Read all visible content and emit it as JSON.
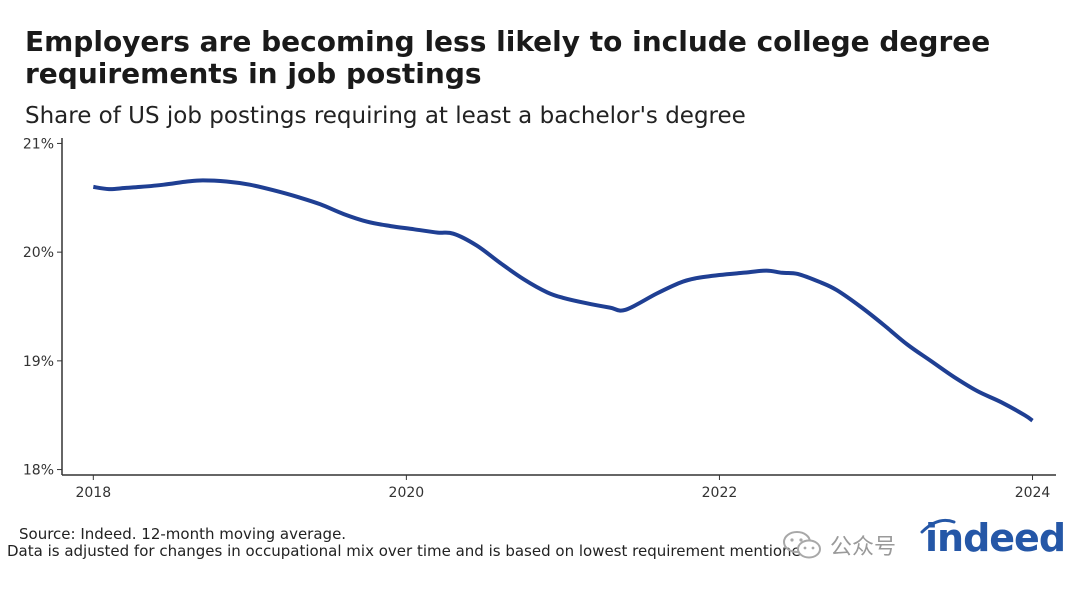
{
  "title": "Employers are becoming less likely to include college degree requirements in job postings",
  "subtitle": "Share of US job postings requiring at least a bachelor's degree",
  "source": "Source: Indeed. 12-month moving average.",
  "note": "Data is adjusted for changes in occupational mix over time and is based on lowest requirement mentioned",
  "logo_text": "indeed",
  "watermark": {
    "text": "公众号",
    "icon": "wechat-icon"
  },
  "colors": {
    "line": "#1f3f93",
    "axis": "#333333",
    "logo": "#2557a7"
  },
  "chart_data": {
    "type": "line",
    "title": "",
    "xlabel": "",
    "ylabel": "",
    "xlim": [
      2017.8,
      2024.15
    ],
    "ylim": [
      17.95,
      21.05
    ],
    "xticks": [
      2018,
      2020,
      2022,
      2024
    ],
    "xtick_labels": [
      "2018",
      "2020",
      "2022",
      "2024"
    ],
    "yticks": [
      18,
      19,
      20,
      21
    ],
    "ytick_labels": [
      "18%",
      "19%",
      "20%",
      "21%"
    ],
    "grid": false,
    "legend": false,
    "series": [
      {
        "x": [
          2018.0,
          2018.1,
          2018.2,
          2018.3,
          2018.45,
          2018.6,
          2018.7,
          2018.85,
          2019.0,
          2019.15,
          2019.3,
          2019.45,
          2019.6,
          2019.75,
          2019.9,
          2020.05,
          2020.2,
          2020.3,
          2020.45,
          2020.6,
          2020.75,
          2020.9,
          2021.0,
          2021.15,
          2021.3,
          2021.4,
          2021.6,
          2021.75,
          2021.85,
          2022.0,
          2022.15,
          2022.3,
          2022.4,
          2022.5,
          2022.65,
          2022.75,
          2022.9,
          2023.05,
          2023.2,
          2023.35,
          2023.5,
          2023.65,
          2023.8,
          2023.95,
          2024.0
        ],
        "y": [
          20.6,
          20.58,
          20.59,
          20.6,
          20.62,
          20.65,
          20.66,
          20.65,
          20.62,
          20.57,
          20.51,
          20.44,
          20.35,
          20.28,
          20.24,
          20.21,
          20.18,
          20.17,
          20.06,
          19.9,
          19.75,
          19.63,
          19.58,
          19.53,
          19.49,
          19.47,
          19.62,
          19.72,
          19.76,
          19.79,
          19.81,
          19.83,
          19.81,
          19.8,
          19.72,
          19.65,
          19.5,
          19.33,
          19.15,
          19.0,
          18.85,
          18.72,
          18.62,
          18.5,
          18.45
        ]
      }
    ]
  }
}
